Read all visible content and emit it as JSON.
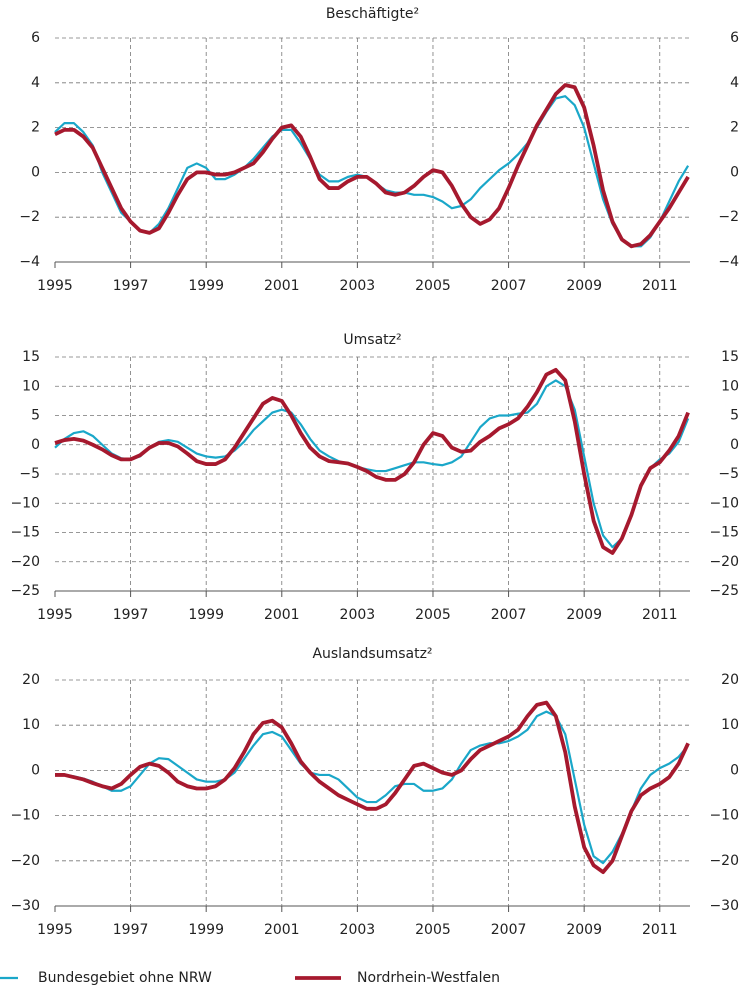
{
  "chart_data": [
    {
      "type": "line",
      "title": "Beschäftigte²",
      "x": [
        1995,
        1995.25,
        1995.5,
        1995.75,
        1996,
        1996.25,
        1996.5,
        1996.75,
        1997,
        1997.25,
        1997.5,
        1997.75,
        1998,
        1998.25,
        1998.5,
        1998.75,
        1999,
        1999.25,
        1999.5,
        1999.75,
        2000,
        2000.25,
        2000.5,
        2000.75,
        2001,
        2001.25,
        2001.5,
        2001.75,
        2002,
        2002.25,
        2002.5,
        2002.75,
        2003,
        2003.25,
        2003.5,
        2003.75,
        2004,
        2004.25,
        2004.5,
        2004.75,
        2005,
        2005.25,
        2005.5,
        2005.75,
        2006,
        2006.25,
        2006.5,
        2006.75,
        2007,
        2007.25,
        2007.5,
        2007.75,
        2008,
        2008.25,
        2008.5,
        2008.75,
        2009,
        2009.25,
        2009.5,
        2009.75,
        2010,
        2010.25,
        2010.5,
        2010.75,
        2011,
        2011.25,
        2011.5,
        2011.75
      ],
      "series": [
        {
          "name": "Bundesgebiet ohne NRW",
          "color": "#1aa7c9",
          "values": [
            1.8,
            2.2,
            2.2,
            1.8,
            1.2,
            0.0,
            -0.9,
            -1.8,
            -2.2,
            -2.6,
            -2.7,
            -2.3,
            -1.6,
            -0.7,
            0.2,
            0.4,
            0.2,
            -0.3,
            -0.3,
            -0.1,
            0.2,
            0.6,
            1.1,
            1.6,
            1.9,
            1.9,
            1.3,
            0.6,
            -0.1,
            -0.4,
            -0.4,
            -0.2,
            -0.1,
            -0.2,
            -0.5,
            -0.8,
            -0.9,
            -0.9,
            -1.0,
            -1.0,
            -1.1,
            -1.3,
            -1.6,
            -1.5,
            -1.2,
            -0.7,
            -0.3,
            0.1,
            0.4,
            0.8,
            1.3,
            2.0,
            2.7,
            3.3,
            3.4,
            3.0,
            2.0,
            0.4,
            -1.2,
            -2.3,
            -3.0,
            -3.3,
            -3.3,
            -2.9,
            -2.2,
            -1.3,
            -0.4,
            0.3
          ]
        },
        {
          "name": "Nordrhein-Westfalen",
          "color": "#a6192e",
          "values": [
            1.7,
            1.9,
            1.9,
            1.6,
            1.1,
            0.2,
            -0.7,
            -1.6,
            -2.2,
            -2.6,
            -2.7,
            -2.5,
            -1.8,
            -1.0,
            -0.3,
            0.0,
            0.0,
            -0.1,
            -0.1,
            0.0,
            0.2,
            0.4,
            0.9,
            1.5,
            2.0,
            2.1,
            1.6,
            0.7,
            -0.3,
            -0.7,
            -0.7,
            -0.4,
            -0.2,
            -0.2,
            -0.5,
            -0.9,
            -1.0,
            -0.9,
            -0.6,
            -0.2,
            0.1,
            0.0,
            -0.6,
            -1.4,
            -2.0,
            -2.3,
            -2.1,
            -1.6,
            -0.7,
            0.3,
            1.2,
            2.1,
            2.8,
            3.5,
            3.9,
            3.8,
            2.9,
            1.2,
            -0.8,
            -2.2,
            -3.0,
            -3.3,
            -3.2,
            -2.8,
            -2.2,
            -1.6,
            -0.9,
            -0.2
          ]
        }
      ],
      "xlim": [
        1995,
        2011.8
      ],
      "xticks": [
        1995,
        1997,
        1999,
        2001,
        2003,
        2005,
        2007,
        2009,
        2011
      ],
      "ylim": [
        -4,
        6
      ],
      "yticks": [
        {
          "value": -4,
          "label": "−4"
        },
        {
          "value": -2,
          "label": "−2"
        },
        0,
        2,
        4,
        6
      ],
      "grid": true
    },
    {
      "type": "line",
      "title": "Umsatz²",
      "x": [
        1995,
        1995.25,
        1995.5,
        1995.75,
        1996,
        1996.25,
        1996.5,
        1996.75,
        1997,
        1997.25,
        1997.5,
        1997.75,
        1998,
        1998.25,
        1998.5,
        1998.75,
        1999,
        1999.25,
        1999.5,
        1999.75,
        2000,
        2000.25,
        2000.5,
        2000.75,
        2001,
        2001.25,
        2001.5,
        2001.75,
        2002,
        2002.25,
        2002.5,
        2002.75,
        2003,
        2003.25,
        2003.5,
        2003.75,
        2004,
        2004.25,
        2004.5,
        2004.75,
        2005,
        2005.25,
        2005.5,
        2005.75,
        2006,
        2006.25,
        2006.5,
        2006.75,
        2007,
        2007.25,
        2007.5,
        2007.75,
        2008,
        2008.25,
        2008.5,
        2008.75,
        2009,
        2009.25,
        2009.5,
        2009.75,
        2010,
        2010.25,
        2010.5,
        2010.75,
        2011,
        2011.25,
        2011.5,
        2011.75
      ],
      "series": [
        {
          "color": "#1aa7c9",
          "values": [
            -0.5,
            1.0,
            2.0,
            2.3,
            1.5,
            0.0,
            -1.5,
            -2.3,
            -2.5,
            -2.0,
            -0.5,
            0.5,
            0.8,
            0.5,
            -0.5,
            -1.5,
            -2.0,
            -2.2,
            -2.0,
            -1.0,
            0.5,
            2.5,
            4.0,
            5.5,
            6.0,
            5.5,
            3.5,
            1.0,
            -1.0,
            -2.0,
            -2.8,
            -3.3,
            -3.8,
            -4.2,
            -4.5,
            -4.5,
            -4.0,
            -3.5,
            -3.0,
            -3.0,
            -3.3,
            -3.5,
            -3.0,
            -2.0,
            0.5,
            3.0,
            4.5,
            5.0,
            5.0,
            5.3,
            5.5,
            7.0,
            10.0,
            11.0,
            10.0,
            6.0,
            -2.0,
            -10.0,
            -15.5,
            -17.5,
            -16.0,
            -12.0,
            -7.0,
            -4.0,
            -2.5,
            -1.5,
            0.5,
            4.5
          ]
        },
        {
          "color": "#a6192e",
          "values": [
            0.3,
            0.8,
            1.0,
            0.7,
            0.0,
            -0.8,
            -1.8,
            -2.5,
            -2.5,
            -1.8,
            -0.5,
            0.3,
            0.3,
            -0.3,
            -1.5,
            -2.8,
            -3.3,
            -3.3,
            -2.5,
            -0.5,
            2.0,
            4.5,
            7.0,
            8.0,
            7.5,
            5.0,
            2.0,
            -0.5,
            -2.0,
            -2.8,
            -3.0,
            -3.2,
            -3.8,
            -4.5,
            -5.5,
            -6.0,
            -6.0,
            -5.0,
            -3.0,
            0.0,
            2.0,
            1.5,
            -0.5,
            -1.2,
            -1.0,
            0.5,
            1.5,
            2.8,
            3.5,
            4.5,
            6.5,
            9.0,
            12.0,
            12.8,
            11.0,
            4.0,
            -5.0,
            -13.0,
            -17.5,
            -18.5,
            -16.0,
            -12.0,
            -7.0,
            -4.0,
            -3.0,
            -1.0,
            1.5,
            5.5
          ]
        }
      ],
      "xlim": [
        1995,
        2011.8
      ],
      "xticks": [
        1995,
        1997,
        1999,
        2001,
        2003,
        2005,
        2007,
        2009,
        2011
      ],
      "ylim": [
        -25,
        15
      ],
      "yticks": [
        {
          "value": -25,
          "label": "−25"
        },
        {
          "value": -20,
          "label": "−20"
        },
        {
          "value": -15,
          "label": "−15"
        },
        {
          "value": -10,
          "label": "−10"
        },
        {
          "value": -5,
          "label": "−5"
        },
        0,
        5,
        10,
        15
      ],
      "grid": true
    },
    {
      "type": "line",
      "title": "Auslandsumsatz²",
      "x": [
        1995,
        1995.25,
        1995.5,
        1995.75,
        1996,
        1996.25,
        1996.5,
        1996.75,
        1997,
        1997.25,
        1997.5,
        1997.75,
        1998,
        1998.25,
        1998.5,
        1998.75,
        1999,
        1999.25,
        1999.5,
        1999.75,
        2000,
        2000.25,
        2000.5,
        2000.75,
        2001,
        2001.25,
        2001.5,
        2001.75,
        2002,
        2002.25,
        2002.5,
        2002.75,
        2003,
        2003.25,
        2003.5,
        2003.75,
        2004,
        2004.25,
        2004.5,
        2004.75,
        2005,
        2005.25,
        2005.5,
        2005.75,
        2006,
        2006.25,
        2006.5,
        2006.75,
        2007,
        2007.25,
        2007.5,
        2007.75,
        2008,
        2008.25,
        2008.5,
        2008.75,
        2009,
        2009.25,
        2009.5,
        2009.75,
        2010,
        2010.25,
        2010.5,
        2010.75,
        2011,
        2011.25,
        2011.5,
        2011.75
      ],
      "series": [
        {
          "color": "#1aa7c9",
          "values": [
            -1.0,
            -1.0,
            -1.3,
            -1.8,
            -2.5,
            -3.5,
            -4.5,
            -4.5,
            -3.5,
            -1.0,
            1.5,
            2.7,
            2.5,
            1.0,
            -0.5,
            -2.0,
            -2.5,
            -2.5,
            -2.0,
            -0.5,
            2.5,
            5.5,
            8.0,
            8.5,
            7.5,
            4.5,
            1.5,
            -0.5,
            -1.0,
            -1.0,
            -2.0,
            -4.0,
            -6.0,
            -7.0,
            -7.0,
            -5.5,
            -3.5,
            -3.0,
            -3.0,
            -4.5,
            -4.5,
            -4.0,
            -2.0,
            1.5,
            4.5,
            5.5,
            6.0,
            6.0,
            6.5,
            7.5,
            9.0,
            12.0,
            13.0,
            12.0,
            8.0,
            -2.0,
            -12.0,
            -19.0,
            -20.5,
            -18.0,
            -14.0,
            -9.0,
            -4.0,
            -1.0,
            0.5,
            1.5,
            3.0,
            5.5
          ]
        },
        {
          "color": "#a6192e",
          "values": [
            -1.0,
            -1.0,
            -1.5,
            -2.0,
            -2.8,
            -3.5,
            -4.0,
            -3.0,
            -1.0,
            0.8,
            1.5,
            1.0,
            -0.5,
            -2.5,
            -3.5,
            -4.0,
            -4.0,
            -3.5,
            -2.0,
            0.5,
            4.0,
            8.0,
            10.5,
            11.0,
            9.5,
            6.0,
            2.0,
            -0.5,
            -2.5,
            -4.0,
            -5.5,
            -6.5,
            -7.5,
            -8.5,
            -8.5,
            -7.5,
            -5.0,
            -2.0,
            1.0,
            1.5,
            0.5,
            -0.5,
            -1.0,
            0.0,
            2.5,
            4.5,
            5.5,
            6.5,
            7.5,
            9.0,
            12.0,
            14.5,
            15.0,
            12.0,
            4.0,
            -8.0,
            -17.0,
            -21.0,
            -22.5,
            -20.0,
            -14.5,
            -9.0,
            -5.5,
            -4.0,
            -3.0,
            -1.5,
            1.5,
            6.0
          ]
        }
      ],
      "xlim": [
        1995,
        2011.8
      ],
      "xticks": [
        1995,
        1997,
        1999,
        2001,
        2003,
        2005,
        2007,
        2009,
        2011
      ],
      "ylim": [
        -30,
        20
      ],
      "yticks": [
        {
          "value": -30,
          "label": "−30"
        },
        {
          "value": -20,
          "label": "−20"
        },
        {
          "value": -10,
          "label": "−10"
        },
        0,
        10,
        20
      ],
      "grid": true
    }
  ]
}
